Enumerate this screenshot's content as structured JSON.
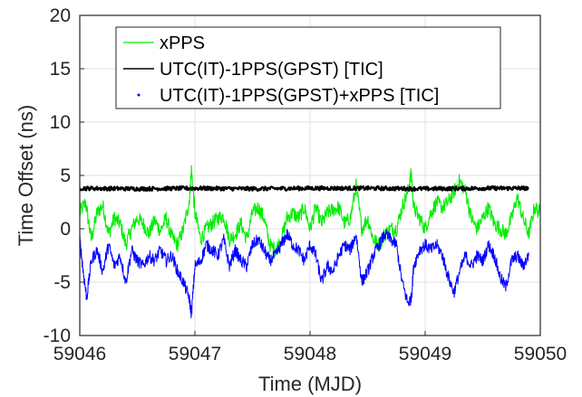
{
  "chart_data": {
    "type": "line",
    "xlabel": "Time (MJD)",
    "ylabel": "Time Offset (ns)",
    "xlim": [
      59046,
      59050
    ],
    "ylim": [
      -10,
      20
    ],
    "xticks": [
      "59046",
      "59047",
      "59048",
      "59049",
      "59050"
    ],
    "yticks": [
      "-10",
      "-5",
      "0",
      "5",
      "10",
      "15",
      "20"
    ],
    "grid": true,
    "legend_position": "top-left",
    "series": [
      {
        "name": "xPPS",
        "color": "#00ee00",
        "style": "line",
        "x": [
          59046.0,
          59046.05,
          59046.1,
          59046.15,
          59046.2,
          59046.25,
          59046.3,
          59046.35,
          59046.4,
          59046.45,
          59046.5,
          59046.55,
          59046.6,
          59046.65,
          59046.7,
          59046.75,
          59046.8,
          59046.85,
          59046.9,
          59046.95,
          59046.97,
          59047.0,
          59047.05,
          59047.1,
          59047.15,
          59047.2,
          59047.25,
          59047.3,
          59047.35,
          59047.4,
          59047.45,
          59047.5,
          59047.55,
          59047.6,
          59047.65,
          59047.7,
          59047.75,
          59047.8,
          59047.85,
          59047.9,
          59047.95,
          59048.0,
          59048.05,
          59048.1,
          59048.15,
          59048.2,
          59048.25,
          59048.3,
          59048.35,
          59048.4,
          59048.45,
          59048.5,
          59048.55,
          59048.6,
          59048.65,
          59048.7,
          59048.75,
          59048.8,
          59048.85,
          59048.88,
          59048.9,
          59048.95,
          59049.0,
          59049.05,
          59049.1,
          59049.15,
          59049.2,
          59049.25,
          59049.3,
          59049.35,
          59049.4,
          59049.45,
          59049.5,
          59049.55,
          59049.6,
          59049.65,
          59049.7,
          59049.75,
          59049.8,
          59049.85,
          59049.9,
          59049.95,
          59050.0
        ],
        "values": [
          1.5,
          2.5,
          -1.0,
          1.5,
          2.2,
          -0.5,
          1.0,
          0.5,
          -1.5,
          0.0,
          1.0,
          0.5,
          -0.5,
          0.8,
          -0.2,
          1.0,
          -0.8,
          -1.5,
          0.0,
          2.5,
          5.5,
          1.5,
          -1.0,
          0.0,
          0.5,
          1.0,
          1.2,
          -1.0,
          -0.5,
          0.5,
          -1.0,
          1.5,
          2.0,
          1.0,
          -1.5,
          -2.0,
          -1.0,
          1.0,
          1.5,
          1.0,
          2.0,
          0.0,
          2.0,
          0.5,
          1.5,
          1.8,
          2.0,
          0.5,
          1.0,
          4.0,
          0.0,
          1.0,
          -1.0,
          -1.5,
          -0.5,
          0.0,
          0.0,
          2.0,
          3.5,
          5.2,
          2.0,
          1.0,
          0.0,
          1.5,
          2.5,
          2.0,
          2.5,
          3.5,
          4.5,
          3.5,
          1.0,
          0.0,
          1.0,
          2.0,
          0.5,
          0.0,
          -0.5,
          1.0,
          3.0,
          1.0,
          -0.5,
          2.0,
          1.5
        ]
      },
      {
        "name": "UTC(IT)-1PPS(GPST) [TIC]",
        "color": "#000000",
        "style": "line",
        "x": [
          59046.0,
          59046.5,
          59047.0,
          59047.5,
          59048.0,
          59048.5,
          59049.0,
          59049.5,
          59049.9
        ],
        "values": [
          3.8,
          3.75,
          3.8,
          3.75,
          3.8,
          3.8,
          3.75,
          3.8,
          3.8
        ]
      },
      {
        "name": "UTC(IT)-1PPS(GPST)+xPPS [TIC]",
        "color": "#0000ff",
        "style": "points",
        "x": [
          59046.0,
          59046.03,
          59046.06,
          59046.1,
          59046.15,
          59046.2,
          59046.25,
          59046.3,
          59046.35,
          59046.4,
          59046.45,
          59046.5,
          59046.55,
          59046.6,
          59046.65,
          59046.7,
          59046.75,
          59046.8,
          59046.85,
          59046.9,
          59046.95,
          59046.97,
          59047.0,
          59047.05,
          59047.1,
          59047.15,
          59047.2,
          59047.25,
          59047.3,
          59047.35,
          59047.4,
          59047.45,
          59047.5,
          59047.55,
          59047.6,
          59047.65,
          59047.7,
          59047.75,
          59047.8,
          59047.85,
          59047.9,
          59047.95,
          59048.0,
          59048.05,
          59048.1,
          59048.15,
          59048.2,
          59048.25,
          59048.3,
          59048.35,
          59048.4,
          59048.45,
          59048.5,
          59048.55,
          59048.6,
          59048.65,
          59048.7,
          59048.75,
          59048.8,
          59048.85,
          59048.88,
          59048.9,
          59048.95,
          59049.0,
          59049.05,
          59049.1,
          59049.15,
          59049.2,
          59049.25,
          59049.3,
          59049.35,
          59049.4,
          59049.45,
          59049.5,
          59049.55,
          59049.6,
          59049.65,
          59049.7,
          59049.75,
          59049.8,
          59049.85,
          59049.9
        ],
        "values": [
          -1.0,
          -4.0,
          -6.5,
          -3.0,
          -2.0,
          -4.0,
          -1.5,
          -3.5,
          -2.5,
          -5.0,
          -2.0,
          -3.0,
          -3.5,
          -2.5,
          -3.0,
          -2.0,
          -3.0,
          -2.5,
          -4.0,
          -5.0,
          -6.5,
          -8.0,
          -3.5,
          -3.0,
          -1.5,
          -2.0,
          -2.5,
          -1.0,
          -3.5,
          -2.0,
          -3.0,
          -3.5,
          -1.5,
          -1.0,
          -2.0,
          -3.0,
          -2.5,
          -1.5,
          -0.5,
          -1.5,
          -2.0,
          -3.0,
          -1.5,
          -2.5,
          -5.0,
          -3.5,
          -4.0,
          -2.5,
          -1.5,
          -2.0,
          -0.5,
          -5.0,
          -4.0,
          -2.5,
          -1.5,
          -0.5,
          -1.0,
          -1.5,
          -5.0,
          -7.0,
          -6.5,
          -3.5,
          -2.0,
          -1.5,
          -2.0,
          -1.5,
          -2.5,
          -4.5,
          -6.0,
          -4.0,
          -2.5,
          -3.5,
          -2.5,
          -3.0,
          -1.5,
          -2.5,
          -4.5,
          -5.5,
          -3.0,
          -2.5,
          -3.5,
          -2.5
        ]
      }
    ]
  }
}
